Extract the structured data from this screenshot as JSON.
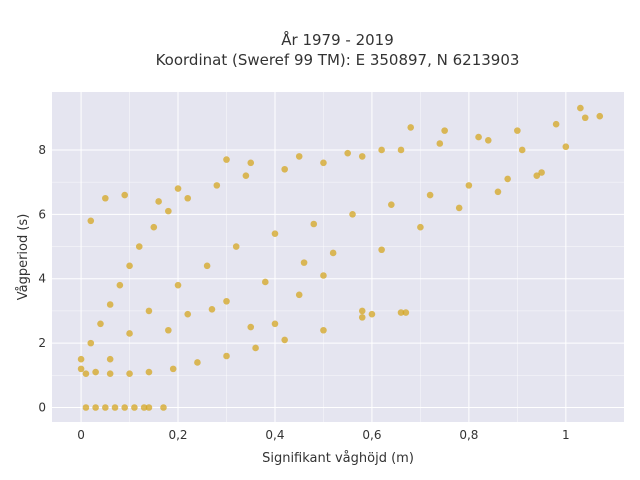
{
  "chart_data": {
    "type": "scatter",
    "title": "År 1979 - 2019",
    "subtitle": "Koordinat (Sweref 99 TM): E 350897, N 6213903",
    "xlabel": "Signifikant våghöjd (m)",
    "ylabel": "Vågperiod (s)",
    "xlim": [
      -0.06,
      1.12
    ],
    "ylim": [
      -0.45,
      9.8
    ],
    "xticks": [
      0,
      0.2,
      0.4,
      0.6,
      0.8,
      1
    ],
    "xtick_labels": [
      "0",
      "0,2",
      "0,4",
      "0,6",
      "0,8",
      "1"
    ],
    "yticks": [
      0,
      2,
      4,
      6,
      8
    ],
    "ytick_labels": [
      "0",
      "2",
      "4",
      "6",
      "8"
    ],
    "grid": true,
    "marker_color": "#D4A521",
    "background_color": "#E5E5F0",
    "series": [
      {
        "points": [
          [
            0.01,
            0
          ],
          [
            0.03,
            0
          ],
          [
            0.05,
            0
          ],
          [
            0.07,
            0
          ],
          [
            0.09,
            0
          ],
          [
            0.11,
            0
          ],
          [
            0.13,
            0
          ],
          [
            0.14,
            0
          ],
          [
            0.17,
            0
          ],
          [
            0.0,
            1.2
          ],
          [
            0.0,
            1.5
          ],
          [
            0.01,
            1.05
          ],
          [
            0.03,
            1.1
          ],
          [
            0.06,
            1.05
          ],
          [
            0.1,
            1.05
          ],
          [
            0.14,
            1.1
          ],
          [
            0.19,
            1.2
          ],
          [
            0.24,
            1.4
          ],
          [
            0.3,
            1.6
          ],
          [
            0.36,
            1.85
          ],
          [
            0.42,
            2.1
          ],
          [
            0.5,
            2.4
          ],
          [
            0.58,
            2.8
          ],
          [
            0.66,
            2.95
          ],
          [
            0.02,
            2.0
          ],
          [
            0.04,
            2.6
          ],
          [
            0.06,
            3.2
          ],
          [
            0.08,
            3.8
          ],
          [
            0.1,
            4.4
          ],
          [
            0.12,
            5.0
          ],
          [
            0.15,
            5.6
          ],
          [
            0.18,
            6.1
          ],
          [
            0.22,
            6.5
          ],
          [
            0.28,
            6.9
          ],
          [
            0.34,
            7.2
          ],
          [
            0.42,
            7.4
          ],
          [
            0.5,
            7.6
          ],
          [
            0.58,
            7.8
          ],
          [
            0.66,
            8.0
          ],
          [
            0.74,
            8.2
          ],
          [
            0.82,
            8.4
          ],
          [
            0.9,
            8.6
          ],
          [
            0.98,
            8.8
          ],
          [
            1.04,
            9.0
          ],
          [
            1.07,
            9.05
          ],
          [
            0.2,
            3.8
          ],
          [
            0.26,
            4.4
          ],
          [
            0.32,
            5.0
          ],
          [
            0.4,
            5.4
          ],
          [
            0.48,
            5.7
          ],
          [
            0.56,
            6.0
          ],
          [
            0.64,
            6.3
          ],
          [
            0.72,
            6.6
          ],
          [
            0.8,
            6.9
          ],
          [
            0.88,
            7.1
          ],
          [
            0.95,
            7.3
          ],
          [
            0.06,
            1.5
          ],
          [
            0.1,
            2.3
          ],
          [
            0.14,
            3.0
          ],
          [
            0.18,
            2.4
          ],
          [
            0.22,
            2.9
          ],
          [
            0.3,
            3.3
          ],
          [
            0.38,
            3.9
          ],
          [
            0.46,
            4.5
          ],
          [
            0.52,
            4.8
          ],
          [
            0.02,
            5.8
          ],
          [
            0.05,
            6.5
          ],
          [
            0.09,
            6.6
          ],
          [
            0.16,
            6.4
          ],
          [
            0.2,
            6.8
          ],
          [
            0.3,
            7.7
          ],
          [
            0.35,
            7.6
          ],
          [
            0.45,
            7.8
          ],
          [
            0.55,
            7.9
          ],
          [
            0.62,
            8.0
          ],
          [
            0.68,
            8.7
          ],
          [
            0.75,
            8.6
          ],
          [
            0.84,
            8.3
          ],
          [
            0.91,
            8.0
          ],
          [
            1.0,
            8.1
          ],
          [
            1.03,
            9.3
          ],
          [
            0.58,
            3.0
          ],
          [
            0.6,
            2.9
          ],
          [
            0.67,
            2.95
          ],
          [
            0.35,
            2.5
          ],
          [
            0.4,
            2.6
          ],
          [
            0.27,
            3.05
          ],
          [
            0.45,
            3.5
          ],
          [
            0.5,
            4.1
          ],
          [
            0.62,
            4.9
          ],
          [
            0.7,
            5.6
          ],
          [
            0.78,
            6.2
          ],
          [
            0.86,
            6.7
          ],
          [
            0.94,
            7.2
          ]
        ]
      }
    ]
  }
}
